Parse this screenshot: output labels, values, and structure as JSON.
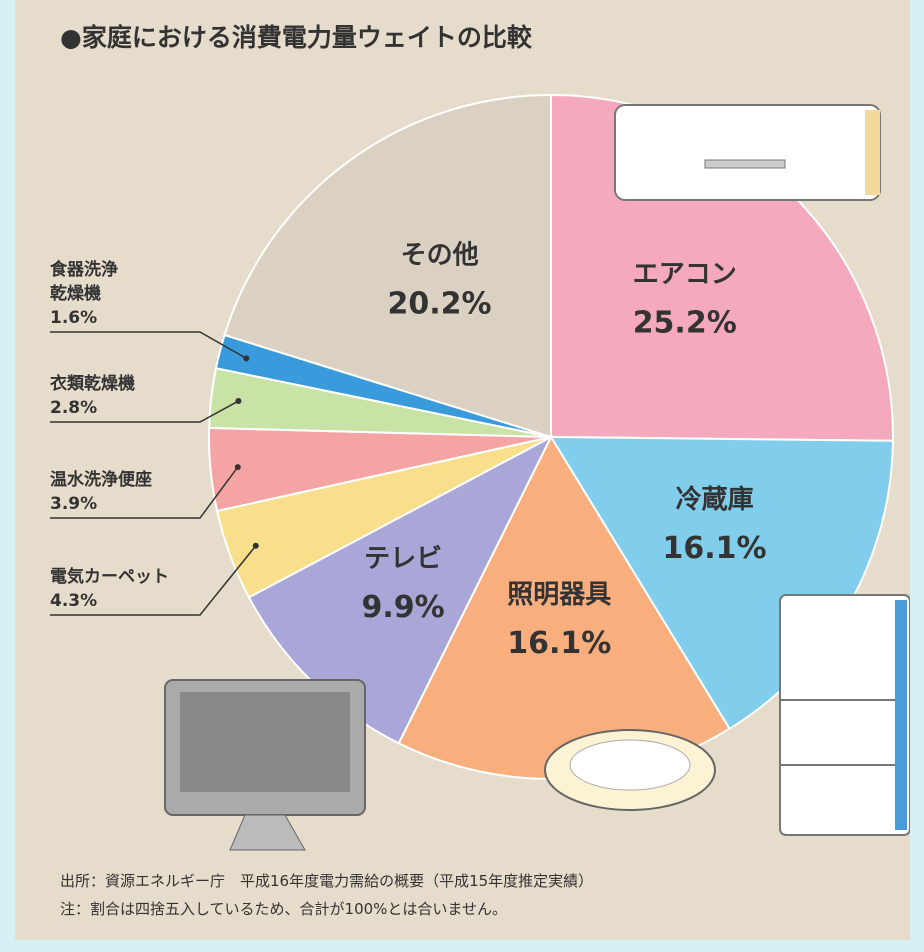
{
  "chart_data": {
    "type": "pie",
    "title": "●家庭における消費電力量ウェイトの比較",
    "categories": [
      "エアコン",
      "冷蔵庫",
      "照明器具",
      "テレビ",
      "電気カーペット",
      "温水洗浄便座",
      "衣類乾燥機",
      "食器洗浄\n乾燥機",
      "その他"
    ],
    "values": [
      25.2,
      16.1,
      16.1,
      9.9,
      4.3,
      3.9,
      2.8,
      1.6,
      20.2
    ],
    "value_labels": [
      "25.2%",
      "16.1%",
      "16.1%",
      "9.9%",
      "4.3%",
      "3.9%",
      "2.8%",
      "1.6%",
      "20.2%"
    ],
    "colors": [
      "#f5a9bc",
      "#80cdec",
      "#f8ae7d",
      "#a9a7d8",
      "#f9df8c",
      "#f4a5a3",
      "#c9e2a6",
      "#3a9bdc",
      "#dbd1c2"
    ],
    "notes": [
      "出所：資源エネルギー庁　平成16年度電力需給の概要（平成15年度推定実績）",
      "注：割合は四捨五入しているため、合計が100%とは合いません。"
    ]
  }
}
